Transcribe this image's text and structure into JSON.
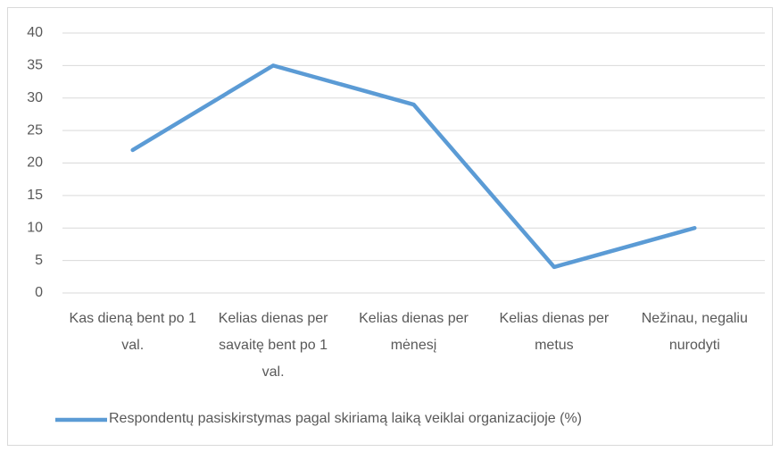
{
  "chart_data": {
    "type": "line",
    "categories": [
      "Kas dieną bent po 1 val.",
      "Kelias dienas per savaitę bent po 1 val.",
      "Kelias dienas per mėnesį",
      "Kelias dienas per metus",
      "Nežinau, negaliu nurodyti"
    ],
    "series": [
      {
        "name": "Respondentų pasiskirstymas pagal skiriamą laiką veiklai organizacijoje (%)",
        "color": "#5b9bd5",
        "values": [
          22,
          35,
          29,
          4,
          10
        ]
      }
    ],
    "ylim": [
      0,
      40
    ],
    "yticks": [
      0,
      5,
      10,
      15,
      20,
      25,
      30,
      35,
      40
    ],
    "grid": true,
    "legend": "bottom"
  }
}
